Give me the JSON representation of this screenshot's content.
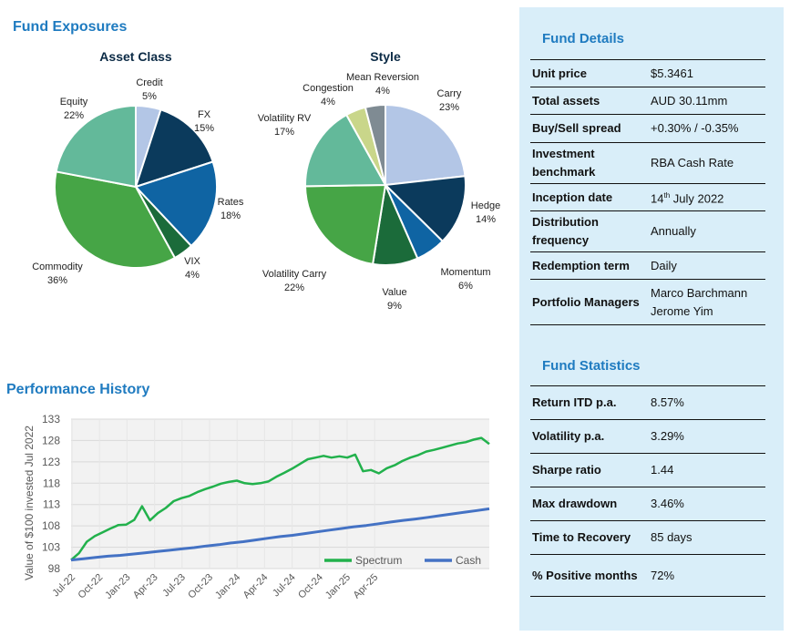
{
  "exposures_title": "Fund Exposures",
  "performance_title": "Performance History",
  "chart_data": [
    {
      "type": "pie",
      "title": "Asset Class",
      "slices": [
        {
          "label": "Credit",
          "value": 5,
          "value_label": "5%",
          "color": "#b3c6e6"
        },
        {
          "label": "FX",
          "value": 15,
          "value_label": "15%",
          "color": "#0b3a5c"
        },
        {
          "label": "Rates",
          "value": 18,
          "value_label": "18%",
          "color": "#0f64a3"
        },
        {
          "label": "VIX",
          "value": 4,
          "value_label": "4%",
          "color": "#1b6b3a"
        },
        {
          "label": "Commodity",
          "value": 36,
          "value_label": "36%",
          "color": "#46a546"
        },
        {
          "label": "Equity",
          "value": 22,
          "value_label": "22%",
          "color": "#63b99a"
        }
      ]
    },
    {
      "type": "pie",
      "title": "Style",
      "slices": [
        {
          "label": "Carry",
          "value": 23,
          "value_label": "23%",
          "color": "#b3c6e6"
        },
        {
          "label": "Hedge",
          "value": 14,
          "value_label": "14%",
          "color": "#0b3a5c"
        },
        {
          "label": "Momentum",
          "value": 6,
          "value_label": "6%",
          "color": "#0f64a3"
        },
        {
          "label": "Value",
          "value": 9,
          "value_label": "9%",
          "color": "#1b6b3a"
        },
        {
          "label": "Volatility Carry",
          "value": 22,
          "value_label": "22%",
          "color": "#46a546"
        },
        {
          "label": "Volatility RV",
          "value": 17,
          "value_label": "17%",
          "color": "#63b99a"
        },
        {
          "label": "Congestion",
          "value": 4,
          "value_label": "4%",
          "color": "#c9d68a"
        },
        {
          "label": "Mean Reversion",
          "value": 4,
          "value_label": "4%",
          "color": "#7f8b93"
        }
      ]
    },
    {
      "type": "line",
      "title": "Performance History",
      "ylabel": "Value of $100 invested Jul 2022",
      "xlabel": "",
      "ylim": [
        98,
        133
      ],
      "yticks": [
        98,
        103,
        108,
        113,
        118,
        123,
        128,
        133
      ],
      "x_tick_labels": [
        "Jul-22",
        "Oct-22",
        "Jan-23",
        "Apr-23",
        "Jul-23",
        "Oct-23",
        "Jan-24",
        "Apr-24",
        "Jul-24",
        "Oct-24",
        "Jan-25",
        "Apr-25"
      ],
      "grid": true,
      "legend_position": "bottom-right",
      "series": [
        {
          "name": "Spectrum",
          "color": "#22b14c",
          "values": [
            100.0,
            101.6,
            104.3,
            105.6,
            106.5,
            107.4,
            108.2,
            108.3,
            109.4,
            112.6,
            109.3,
            111.0,
            112.2,
            113.8,
            114.5,
            115.0,
            115.9,
            116.6,
            117.2,
            117.9,
            118.3,
            118.6,
            118.0,
            117.8,
            118.0,
            118.4,
            119.5,
            120.4,
            121.4,
            122.5,
            123.6,
            124.0,
            124.4,
            124.0,
            124.3,
            124.0,
            124.7,
            120.8,
            121.1,
            120.3,
            121.5,
            122.2,
            123.2,
            124.0,
            124.6,
            125.4,
            125.8,
            126.3,
            126.8,
            127.3,
            127.6,
            128.2,
            128.6,
            127.2
          ]
        },
        {
          "name": "Cash",
          "color": "#4472c4",
          "values": [
            100.0,
            100.3,
            100.6,
            100.9,
            101.1,
            101.4,
            101.7,
            102.0,
            102.3,
            102.6,
            102.9,
            103.3,
            103.6,
            104.0,
            104.3,
            104.7,
            105.1,
            105.5,
            105.8,
            106.2,
            106.6,
            107.0,
            107.4,
            107.8,
            108.1,
            108.5,
            108.9,
            109.3,
            109.6,
            110.0,
            110.4,
            110.8,
            111.2,
            111.6,
            112.0
          ]
        }
      ]
    }
  ],
  "fund_details": {
    "title": "Fund Details",
    "rows": [
      {
        "label": "Unit price",
        "value": "$5.3461"
      },
      {
        "label": "Total assets",
        "value": "AUD 30.11mm"
      },
      {
        "label": "Buy/Sell spread",
        "value": "+0.30% / -0.35%"
      },
      {
        "label": "Investment benchmark",
        "value": "RBA Cash Rate"
      },
      {
        "label": "Inception date",
        "value_prefix": "14",
        "value_sup": "th",
        "value_suffix": " July 2022"
      },
      {
        "label": "Distribution frequency",
        "value": "Annually"
      },
      {
        "label": "Redemption term",
        "value": "Daily"
      },
      {
        "label": "Portfolio Managers",
        "value_line1": "Marco Barchmann",
        "value_line2": "Jerome Yim"
      }
    ]
  },
  "fund_statistics": {
    "title": "Fund Statistics",
    "rows": [
      {
        "label": "Return ITD p.a.",
        "value": "8.57%"
      },
      {
        "label": "Volatility p.a.",
        "value": "3.29%"
      },
      {
        "label": "Sharpe ratio",
        "value": "1.44"
      },
      {
        "label": "Max drawdown",
        "value": "3.46%"
      },
      {
        "label": "Time to Recovery",
        "value": "85 days"
      },
      {
        "label": "% Positive months",
        "value": "72%"
      }
    ]
  }
}
